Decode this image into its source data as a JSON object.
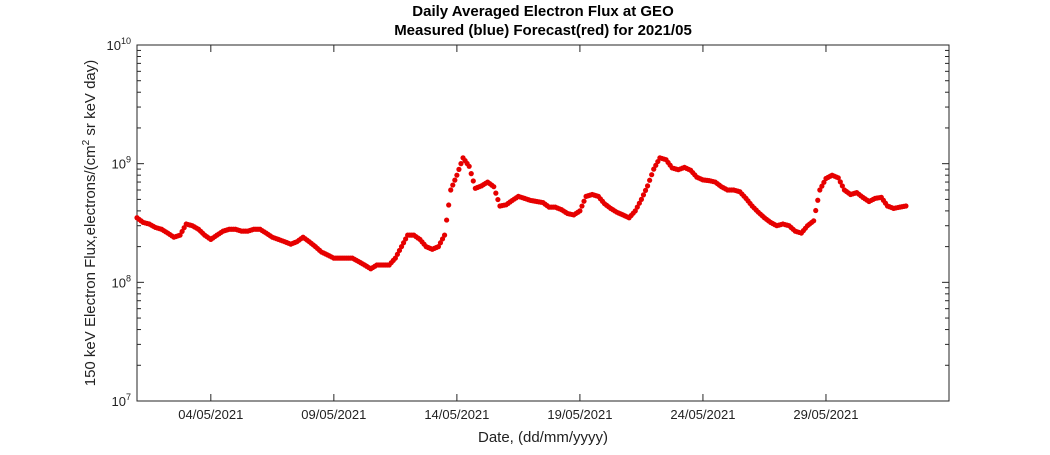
{
  "chart_data": {
    "type": "scatter",
    "title": "Daily Averaged Electron Flux at GEO",
    "subtitle": "Measured (blue) Forecast(red) for 2021/05",
    "xlabel": "Date, (dd/mm/yyyy)",
    "ylabel": "150 keV Electron Flux,electrons/(cm² sr keV day)",
    "ylabel_parts": {
      "before": "150 keV Electron Flux,electrons/(cm",
      "sup": "2",
      "after": " sr keV day)"
    },
    "y_scale": "log",
    "ylim": [
      10000000,
      10000000000
    ],
    "xlim": [
      "2021-05-01T00:00",
      "2021-06-03T00:00"
    ],
    "grid": false,
    "y_ticks": [
      {
        "value": 10000000,
        "base": "10",
        "exp": "7"
      },
      {
        "value": 100000000,
        "base": "10",
        "exp": "8"
      },
      {
        "value": 1000000000,
        "base": "10",
        "exp": "9"
      },
      {
        "value": 10000000000,
        "base": "10",
        "exp": "10"
      }
    ],
    "x_ticks": [
      {
        "date": "2021-05-04",
        "label": "04/05/2021"
      },
      {
        "date": "2021-05-09",
        "label": "09/05/2021"
      },
      {
        "date": "2021-05-14",
        "label": "14/05/2021"
      },
      {
        "date": "2021-05-19",
        "label": "19/05/2021"
      },
      {
        "date": "2021-05-24",
        "label": "24/05/2021"
      },
      {
        "date": "2021-05-29",
        "label": "29/05/2021"
      }
    ],
    "series": [
      {
        "color": "#e60000",
        "marker": "dot",
        "x": [
          "2021-05-01T00:00",
          "2021-05-01T06:00",
          "2021-05-01T12:00",
          "2021-05-01T18:00",
          "2021-05-02T00:00",
          "2021-05-02T06:00",
          "2021-05-02T12:00",
          "2021-05-02T18:00",
          "2021-05-03T00:00",
          "2021-05-03T06:00",
          "2021-05-03T12:00",
          "2021-05-03T18:00",
          "2021-05-04T00:00",
          "2021-05-04T06:00",
          "2021-05-04T12:00",
          "2021-05-04T18:00",
          "2021-05-05T00:00",
          "2021-05-05T06:00",
          "2021-05-05T12:00",
          "2021-05-05T18:00",
          "2021-05-06T00:00",
          "2021-05-06T06:00",
          "2021-05-06T12:00",
          "2021-05-06T18:00",
          "2021-05-07T00:00",
          "2021-05-07T06:00",
          "2021-05-07T12:00",
          "2021-05-07T18:00",
          "2021-05-08T00:00",
          "2021-05-08T06:00",
          "2021-05-08T12:00",
          "2021-05-08T18:00",
          "2021-05-09T00:00",
          "2021-05-09T06:00",
          "2021-05-09T12:00",
          "2021-05-09T18:00",
          "2021-05-10T00:00",
          "2021-05-10T06:00",
          "2021-05-10T12:00",
          "2021-05-10T18:00",
          "2021-05-11T00:00",
          "2021-05-11T06:00",
          "2021-05-11T12:00",
          "2021-05-11T18:00",
          "2021-05-12T00:00",
          "2021-05-12T06:00",
          "2021-05-12T12:00",
          "2021-05-12T18:00",
          "2021-05-13T00:00",
          "2021-05-13T06:00",
          "2021-05-13T12:00",
          "2021-05-13T18:00",
          "2021-05-14T00:00",
          "2021-05-14T06:00",
          "2021-05-14T12:00",
          "2021-05-14T18:00",
          "2021-05-15T00:00",
          "2021-05-15T06:00",
          "2021-05-15T12:00",
          "2021-05-15T18:00",
          "2021-05-16T00:00",
          "2021-05-16T06:00",
          "2021-05-16T12:00",
          "2021-05-16T18:00",
          "2021-05-17T00:00",
          "2021-05-17T06:00",
          "2021-05-17T12:00",
          "2021-05-17T18:00",
          "2021-05-18T00:00",
          "2021-05-18T06:00",
          "2021-05-18T12:00",
          "2021-05-18T18:00",
          "2021-05-19T00:00",
          "2021-05-19T06:00",
          "2021-05-19T12:00",
          "2021-05-19T18:00",
          "2021-05-20T00:00",
          "2021-05-20T06:00",
          "2021-05-20T12:00",
          "2021-05-20T18:00",
          "2021-05-21T00:00",
          "2021-05-21T06:00",
          "2021-05-21T12:00",
          "2021-05-21T18:00",
          "2021-05-22T00:00",
          "2021-05-22T06:00",
          "2021-05-22T12:00",
          "2021-05-22T18:00",
          "2021-05-23T00:00",
          "2021-05-23T06:00",
          "2021-05-23T12:00",
          "2021-05-23T18:00",
          "2021-05-24T00:00",
          "2021-05-24T06:00",
          "2021-05-24T12:00",
          "2021-05-24T18:00",
          "2021-05-25T00:00",
          "2021-05-25T06:00",
          "2021-05-25T12:00",
          "2021-05-25T18:00",
          "2021-05-26T00:00",
          "2021-05-26T06:00",
          "2021-05-26T12:00",
          "2021-05-26T18:00",
          "2021-05-27T00:00",
          "2021-05-27T06:00",
          "2021-05-27T12:00",
          "2021-05-27T18:00",
          "2021-05-28T00:00",
          "2021-05-28T06:00",
          "2021-05-28T12:00",
          "2021-05-28T18:00",
          "2021-05-29T00:00",
          "2021-05-29T06:00",
          "2021-05-29T12:00",
          "2021-05-29T18:00",
          "2021-05-30T00:00",
          "2021-05-30T06:00",
          "2021-05-30T12:00",
          "2021-05-30T18:00",
          "2021-05-31T00:00",
          "2021-05-31T06:00",
          "2021-05-31T12:00",
          "2021-05-31T18:00",
          "2021-06-01T00:00",
          "2021-06-01T06:00"
        ],
        "y": [
          350000000,
          320000000,
          310000000,
          290000000,
          280000000,
          260000000,
          240000000,
          250000000,
          310000000,
          300000000,
          280000000,
          250000000,
          230000000,
          250000000,
          270000000,
          280000000,
          280000000,
          270000000,
          270000000,
          280000000,
          280000000,
          260000000,
          240000000,
          230000000,
          220000000,
          210000000,
          220000000,
          240000000,
          220000000,
          200000000,
          180000000,
          170000000,
          160000000,
          160000000,
          160000000,
          160000000,
          150000000,
          140000000,
          130000000,
          140000000,
          140000000,
          140000000,
          160000000,
          200000000,
          250000000,
          250000000,
          230000000,
          200000000,
          190000000,
          200000000,
          250000000,
          600000000,
          800000000,
          1120000000,
          950000000,
          620000000,
          650000000,
          700000000,
          640000000,
          440000000,
          450000000,
          490000000,
          530000000,
          510000000,
          490000000,
          480000000,
          470000000,
          430000000,
          430000000,
          410000000,
          380000000,
          370000000,
          400000000,
          530000000,
          550000000,
          530000000,
          460000000,
          420000000,
          390000000,
          370000000,
          350000000,
          400000000,
          500000000,
          650000000,
          900000000,
          1120000000,
          1080000000,
          920000000,
          890000000,
          930000000,
          880000000,
          770000000,
          730000000,
          720000000,
          700000000,
          640000000,
          600000000,
          600000000,
          580000000,
          510000000,
          440000000,
          390000000,
          350000000,
          320000000,
          300000000,
          310000000,
          300000000,
          270000000,
          260000000,
          300000000,
          330000000,
          600000000,
          750000000,
          800000000,
          760000000,
          600000000,
          550000000,
          570000000,
          520000000,
          480000000,
          510000000,
          520000000,
          440000000,
          420000000,
          430000000,
          440000000
        ]
      }
    ]
  }
}
